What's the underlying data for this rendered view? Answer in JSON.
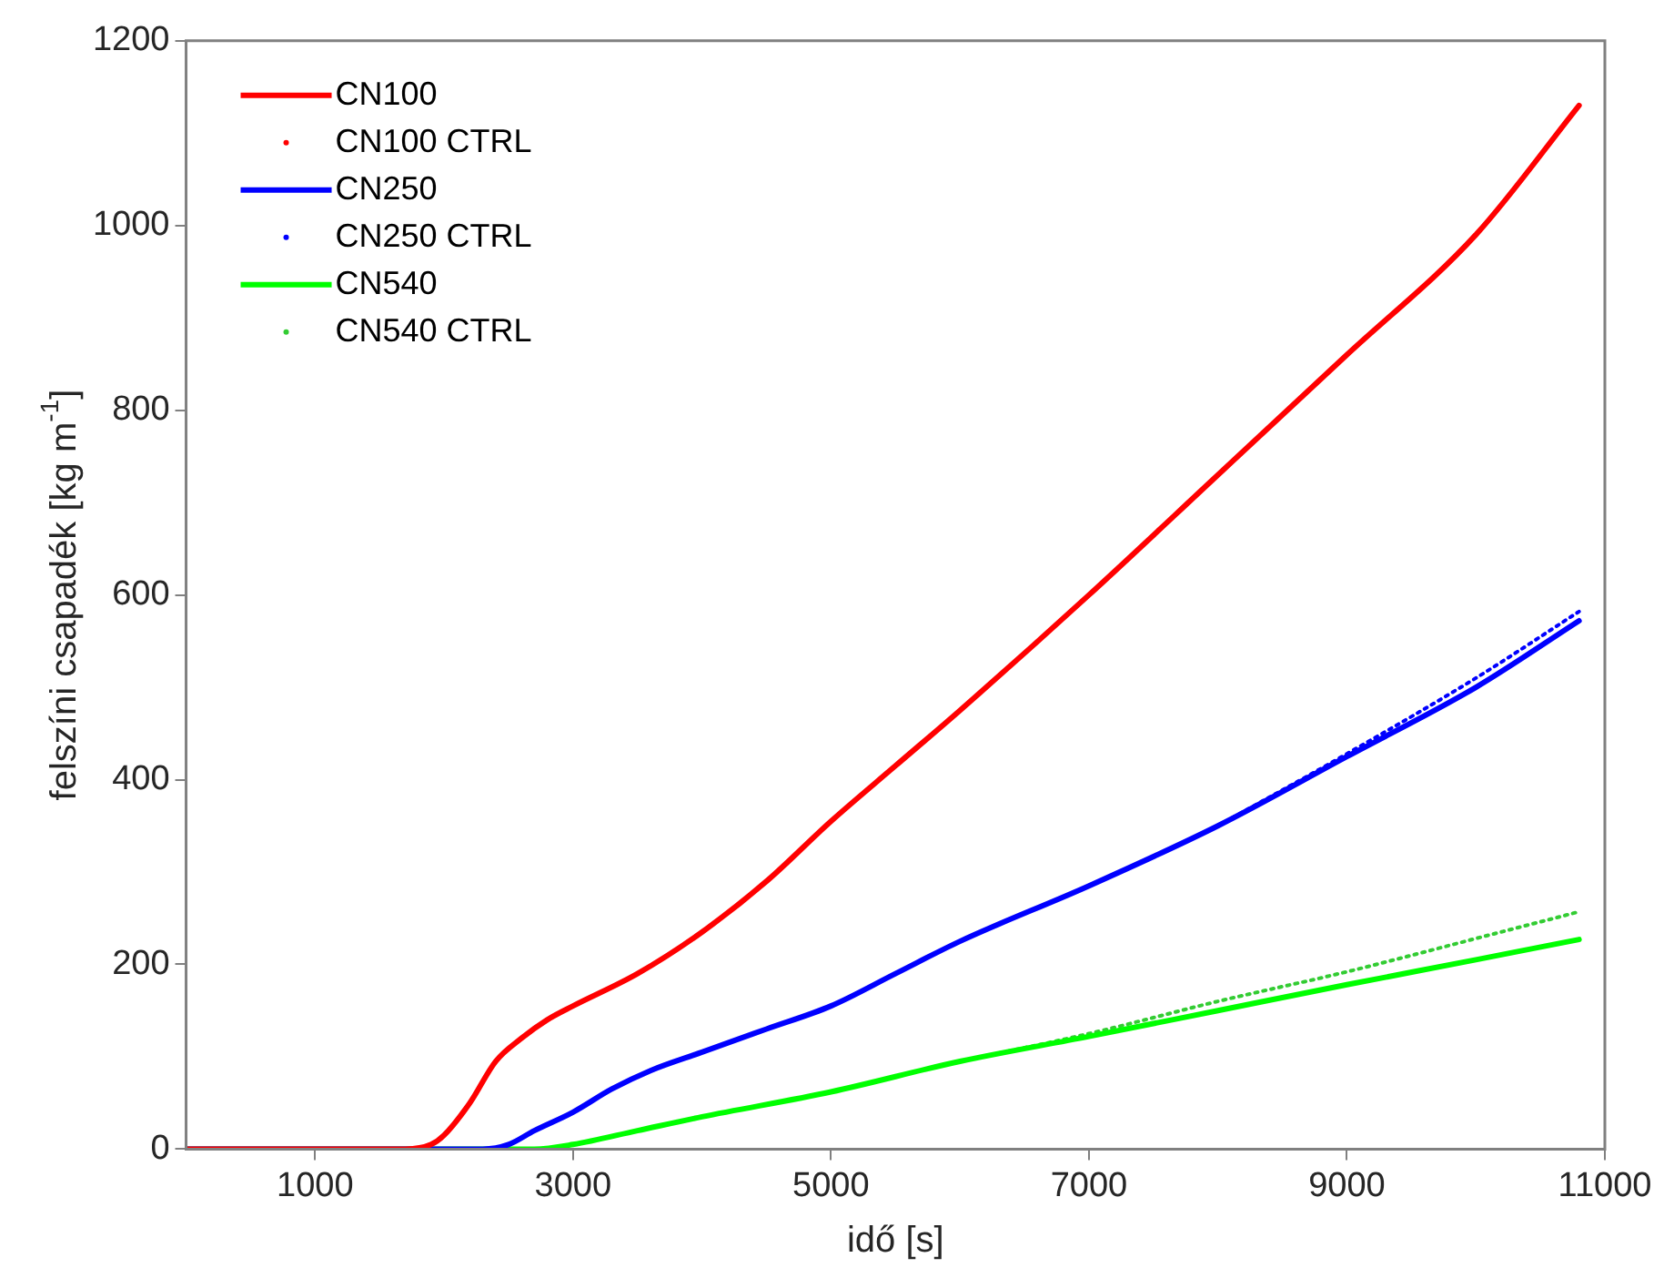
{
  "chart_data": {
    "type": "line",
    "xlabel": "idő [s]",
    "ylabel": "felszíni csapadék [kg m$^{-1}$]",
    "xlim": [
      0,
      11000
    ],
    "ylim": [
      0,
      1200
    ],
    "xticks": [
      1000,
      3000,
      5000,
      7000,
      9000,
      11000
    ],
    "yticks": [
      0,
      200,
      400,
      600,
      800,
      1000,
      1200
    ],
    "grid": false,
    "legend": "top left",
    "marker": "none",
    "series": [
      {
        "name": "CN100",
        "color": "#ff0000",
        "line_style": "solid",
        "x": [
          0,
          1000,
          1700,
          1900,
          2000,
          2200,
          2400,
          2600,
          2800,
          3000,
          3500,
          4000,
          4500,
          5000,
          5500,
          6000,
          7000,
          8000,
          9000,
          10000,
          10800
        ],
        "values": [
          0,
          0,
          0,
          5,
          15,
          50,
          95,
          120,
          140,
          155,
          190,
          235,
          290,
          355,
          415,
          475,
          600,
          730,
          860,
          990,
          1130
        ]
      },
      {
        "name": "CN100 CTRL",
        "color": "#ff0000",
        "line_style": "dotted"
      },
      {
        "name": "CN250",
        "color": "#0000ff",
        "line_style": "solid",
        "x": [
          0,
          1000,
          2300,
          2500,
          2700,
          3000,
          3300,
          3600,
          4000,
          4500,
          5000,
          5500,
          6000,
          7000,
          8000,
          9000,
          10000,
          10800
        ],
        "values": [
          0,
          0,
          0,
          5,
          20,
          40,
          65,
          85,
          105,
          130,
          155,
          190,
          225,
          285,
          350,
          425,
          500,
          572
        ]
      },
      {
        "name": "CN250 CTRL",
        "color": "#0000ff",
        "line_style": "dotted",
        "x": [
          8000,
          9000,
          10000,
          10800
        ],
        "values": [
          350,
          428,
          510,
          582
        ]
      },
      {
        "name": "CN540",
        "color": "#00ff00",
        "line_style": "solid",
        "x": [
          0,
          1000,
          2700,
          3000,
          3500,
          4000,
          5000,
          6000,
          7000,
          8000,
          9000,
          10000,
          10800
        ],
        "values": [
          0,
          0,
          0,
          5,
          20,
          35,
          62,
          95,
          122,
          150,
          178,
          205,
          227
        ]
      },
      {
        "name": "CN540 CTRL",
        "color": "#33cc33",
        "line_style": "dotted",
        "x": [
          6000,
          7000,
          8000,
          9000,
          10000,
          10800
        ],
        "values": [
          95,
          125,
          160,
          192,
          228,
          257
        ]
      }
    ]
  }
}
